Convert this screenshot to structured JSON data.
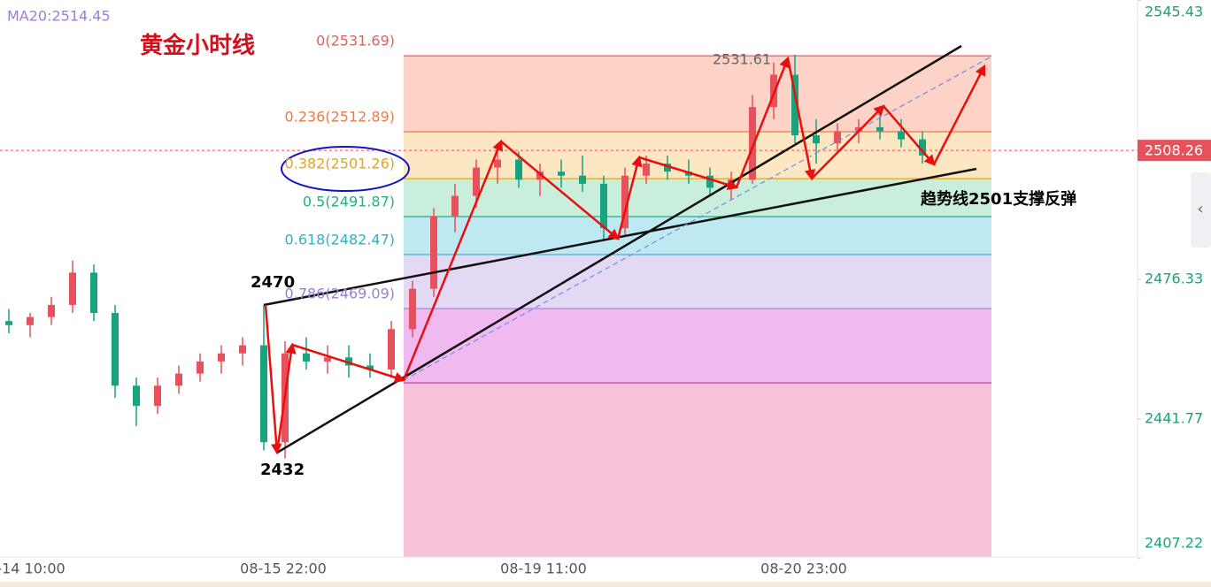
{
  "chart_data": {
    "type": "candlestick",
    "title": "黄金小时线",
    "indicator_label": "MA20:2514.45",
    "x_labels": [
      "-14 10:00",
      "08-15 22:00",
      "08-19 11:00",
      "08-20 23:00"
    ],
    "ylim": [
      2407.6,
      2545.5
    ],
    "yticks": [
      2545.43,
      2476.33,
      2441.77,
      2407.22
    ],
    "up_color": "#e8505b",
    "down_color": "#16a37d",
    "open": [
      2466,
      2465,
      2467,
      2470,
      2478,
      2468,
      2450,
      2445,
      2450,
      2453,
      2456,
      2458,
      2460,
      2436,
      2458,
      2456,
      2457,
      2455,
      2454,
      2464,
      2474,
      2492,
      2497,
      2504,
      2506,
      2501,
      2503,
      2502,
      2500,
      2489,
      2502,
      2505,
      2503,
      2502,
      2499,
      2501,
      2519,
      2527,
      2512,
      2510,
      2513,
      2514,
      2513,
      2511
    ],
    "high": [
      2469,
      2468,
      2472,
      2481,
      2480,
      2470,
      2452,
      2452,
      2455,
      2458,
      2460,
      2462,
      2470,
      2461,
      2462,
      2460,
      2460,
      2458,
      2466,
      2476,
      2494,
      2500,
      2506,
      2510,
      2508,
      2505,
      2506,
      2507,
      2502,
      2504,
      2507,
      2507,
      2506,
      2504,
      2503,
      2522,
      2530,
      2532,
      2516,
      2515,
      2516,
      2518,
      2516,
      2513
    ],
    "low": [
      2463,
      2462,
      2465,
      2468,
      2466,
      2447,
      2440,
      2443,
      2448,
      2451,
      2453,
      2455,
      2434,
      2432,
      2454,
      2453,
      2452,
      2452,
      2452,
      2462,
      2472,
      2488,
      2494,
      2500,
      2499,
      2497,
      2499,
      2498,
      2486,
      2487,
      2500,
      2501,
      2500,
      2497,
      2496,
      2500,
      2516,
      2510,
      2505,
      2508,
      2510,
      2511,
      2509,
      2505
    ],
    "close": [
      2465,
      2467,
      2470,
      2478,
      2468,
      2450,
      2445,
      2450,
      2453,
      2456,
      2458,
      2460,
      2436,
      2458,
      2456,
      2457,
      2455,
      2454,
      2464,
      2474,
      2492,
      2497,
      2504,
      2506,
      2501,
      2503,
      2502,
      2500,
      2489,
      2502,
      2505,
      2503,
      2502,
      2499,
      2501,
      2519,
      2527,
      2512,
      2510,
      2513,
      2514,
      2513,
      2511,
      2507
    ],
    "fib_levels": [
      {
        "label": "0(2531.69)",
        "value": 2531.69,
        "color": "#e0605f",
        "fill": "#fcd3c6"
      },
      {
        "label": "0.236(2512.89)",
        "value": 2512.89,
        "color": "#f07a45",
        "fill": "#fde6c2"
      },
      {
        "label": "0.382(2501.26)",
        "value": 2501.26,
        "color": "#e6a417",
        "fill": "#c9eedb"
      },
      {
        "label": "0.5(2491.87)",
        "value": 2491.87,
        "color": "#27b07a",
        "fill": "#bfe9f2"
      },
      {
        "label": "0.618(2482.47)",
        "value": 2482.47,
        "color": "#2ab3cf",
        "fill": "#e3d9f4"
      },
      {
        "label": "0.786(2469.09)",
        "value": 2469.09,
        "color": "#9a7fd6",
        "fill": "#f0b9ef"
      },
      {
        "value": 2450.7,
        "color": "#c43bb8",
        "fill": "#f6c2d9"
      }
    ],
    "last_price": 2508.26,
    "high_label": "2531.61",
    "annotations": [
      "2470",
      "2432",
      "趋势线2501支撑反弹"
    ]
  }
}
